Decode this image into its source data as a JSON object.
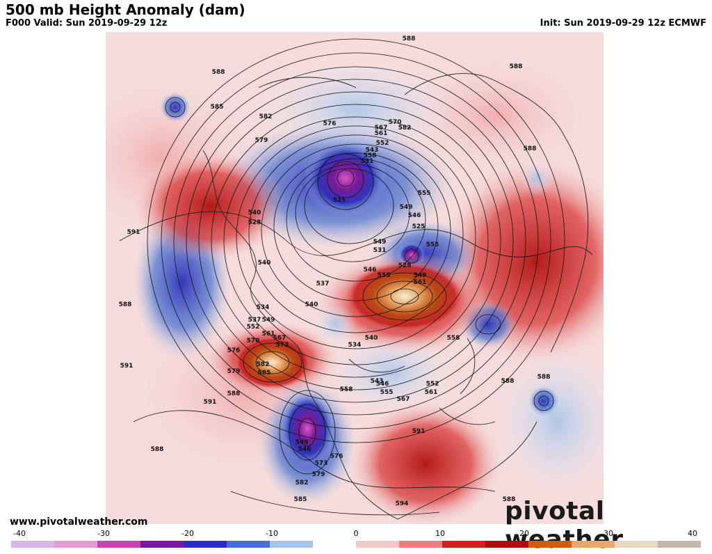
{
  "header": {
    "title": "500 mb Height Anomaly (dam)",
    "valid": "F000 Valid: Sun 2019-09-29 12z",
    "init": "Init: Sun 2019-09-29 12z ECMWF"
  },
  "footer": {
    "website": "www.pivotalweather.com",
    "brand": "pivotal weather"
  },
  "colorbar": {
    "ticks": [
      "-40",
      "-30",
      "-20",
      "-10",
      "0",
      "10",
      "20",
      "30",
      "40"
    ],
    "colors": [
      "#d8b4e8",
      "#e49ad0",
      "#c046b0",
      "#7a1a96",
      "#2a30b8",
      "#4870d0",
      "#a8c4ea",
      "#ffffff",
      "#f4c8c8",
      "#e88080",
      "#d02020",
      "#a81010",
      "#c86010",
      "#e8a868",
      "#e8d8c0",
      "#c0b8b0"
    ]
  },
  "contour_labels": [
    "588",
    "588",
    "585",
    "582",
    "588",
    "579",
    "576",
    "567",
    "570",
    "561",
    "582",
    "552",
    "543",
    "558",
    "588",
    "531",
    "525",
    "555",
    "549",
    "546",
    "540",
    "528",
    "525",
    "591",
    "549",
    "540",
    "531",
    "528",
    "555",
    "537",
    "549",
    "561",
    "546",
    "555",
    "540",
    "588",
    "534",
    "537",
    "549",
    "552",
    "561",
    "570",
    "567",
    "573",
    "540",
    "534",
    "558",
    "576",
    "582",
    "579",
    "585",
    "591",
    "546",
    "543",
    "552",
    "561",
    "555",
    "567",
    "549",
    "558",
    "546",
    "573",
    "576",
    "579",
    "588",
    "591",
    "591",
    "594",
    "585",
    "582",
    "588",
    "588",
    "588",
    "588"
  ]
}
